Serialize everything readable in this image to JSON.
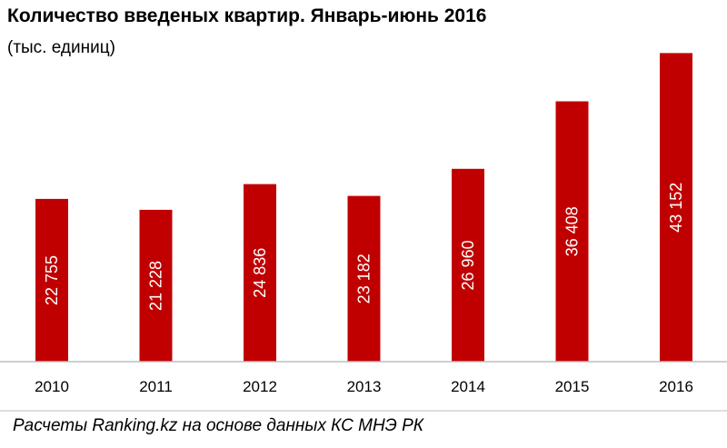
{
  "header": {
    "title": "Количество  введеных  квартир.  Январь-июнь  2016",
    "subtitle": "(тыс. единиц)"
  },
  "footer": {
    "source": "Расчеты Ranking.kz на основе данных  КС МНЭ РК"
  },
  "colors": {
    "bar": "#c00000",
    "axis": "#bfbfbf",
    "footer_line": "#bfbfbf"
  },
  "chart_data": {
    "type": "bar",
    "title": "Количество  введеных  квартир.  Январь-июнь  2016",
    "subtitle": "(тыс. единиц)",
    "categories": [
      "2010",
      "2011",
      "2012",
      "2013",
      "2014",
      "2015",
      "2016"
    ],
    "values": [
      22755,
      21228,
      24836,
      23182,
      26960,
      36408,
      43152
    ],
    "value_labels": [
      "22 755",
      "21 228",
      "24 836",
      "23 182",
      "26 960",
      "36 408",
      "43 152"
    ],
    "xlabel": "",
    "ylabel": "",
    "ylim": [
      0,
      46000
    ],
    "grid": false,
    "legend": "none"
  }
}
